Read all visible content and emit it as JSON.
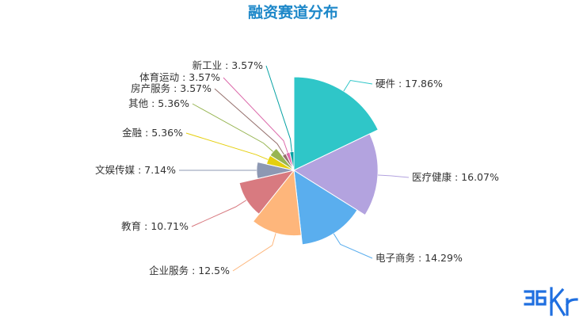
{
  "colors": {
    "title": "#1e88c9",
    "label_text": "#333333",
    "logo": "#1f6fe0"
  },
  "logo": {
    "text": "36Kr"
  },
  "chart_data": {
    "type": "pie",
    "variant": "rose (nightingale) — radius proportional to value",
    "title": "融资赛道分布",
    "start_angle_deg": 90,
    "direction": "clockwise",
    "label_format": "{name} : {value}%",
    "slices": [
      {
        "name": "硬件",
        "value": 17.86,
        "color": "#2fc6c8"
      },
      {
        "name": "医疗健康",
        "value": 16.07,
        "color": "#b3a3df"
      },
      {
        "name": "电子商务",
        "value": 14.29,
        "color": "#5aaeee"
      },
      {
        "name": "企业服务",
        "value": 12.5,
        "color": "#feb67b"
      },
      {
        "name": "教育",
        "value": 10.71,
        "color": "#d87a80"
      },
      {
        "name": "文娱传媒",
        "value": 7.14,
        "color": "#8d98b3"
      },
      {
        "name": "金融",
        "value": 5.36,
        "color": "#e5cf0d"
      },
      {
        "name": "其他",
        "value": 5.36,
        "color": "#97b552"
      },
      {
        "name": "房产服务",
        "value": 3.57,
        "color": "#95706d"
      },
      {
        "name": "体育运动",
        "value": 3.57,
        "color": "#dc69aa"
      },
      {
        "name": "新工业",
        "value": 3.57,
        "color": "#07a2a4"
      }
    ]
  }
}
